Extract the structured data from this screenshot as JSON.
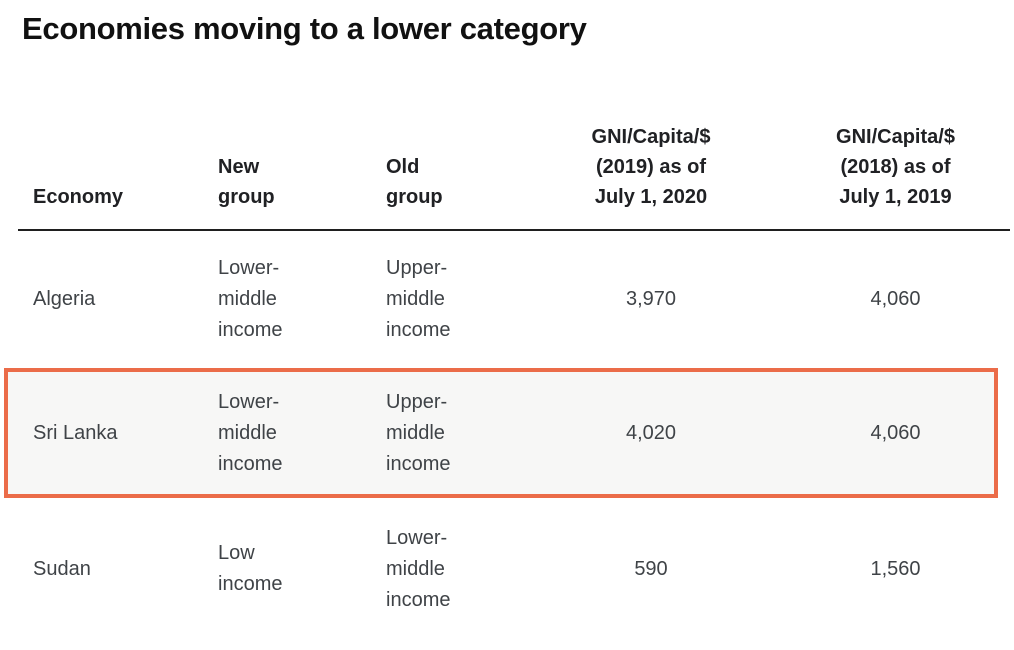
{
  "page": {
    "title": "Economies moving to a lower category",
    "background_color": "#ffffff"
  },
  "table": {
    "header_divider_color": "#1f1f1f",
    "columns": [
      {
        "key": "economy",
        "label": "Economy",
        "align": "left"
      },
      {
        "key": "new_group",
        "label": "New\ngroup",
        "align": "left"
      },
      {
        "key": "old_group",
        "label": "Old\ngroup",
        "align": "left"
      },
      {
        "key": "gni_2020",
        "label": "GNI/Capita/$\n(2019) as of\nJuly 1, 2020",
        "align": "center"
      },
      {
        "key": "gni_2019",
        "label": "GNI/Capita/$\n(2018) as of\nJuly 1, 2019",
        "align": "center"
      }
    ],
    "rows": [
      {
        "economy": "Algeria",
        "new_group": "Lower-\nmiddle\nincome",
        "old_group": "Upper-\nmiddle\nincome",
        "gni_2020": "3,970",
        "gni_2019": "4,060",
        "highlighted": false
      },
      {
        "economy": "Sri Lanka",
        "new_group": "Lower-\nmiddle\nincome",
        "old_group": "Upper-\nmiddle\nincome",
        "gni_2020": "4,020",
        "gni_2019": "4,060",
        "highlighted": true
      },
      {
        "economy": "Sudan",
        "new_group": "Low\nincome",
        "old_group": "Lower-\nmiddle\nincome",
        "gni_2020": "590",
        "gni_2019": "1,560",
        "highlighted": false
      }
    ],
    "highlight": {
      "border_color": "#eb6c49",
      "row_background": "#f7f7f6",
      "highlighted_row": "Sri Lanka"
    }
  },
  "chart_data": {
    "type": "table",
    "title": "Economies moving to a lower category",
    "columns": [
      "Economy",
      "New group",
      "Old group",
      "GNI/Capita/$ (2019) as of July 1, 2020",
      "GNI/Capita/$ (2018) as of July 1, 2019"
    ],
    "rows": [
      [
        "Algeria",
        "Lower-middle income",
        "Upper-middle income",
        "3,970",
        "4,060"
      ],
      [
        "Sri Lanka",
        "Lower-middle income",
        "Upper-middle income",
        "4,020",
        "4,060"
      ],
      [
        "Sudan",
        "Low income",
        "Lower-middle income",
        "590",
        "1,560"
      ]
    ],
    "annotations": [
      "Sri Lanka row is emphasized with an orange rectangular outline and light gray fill"
    ],
    "layout": {
      "header_alignment": "bottom",
      "numeric_columns_alignment": "center",
      "text_columns_alignment": "left"
    }
  }
}
